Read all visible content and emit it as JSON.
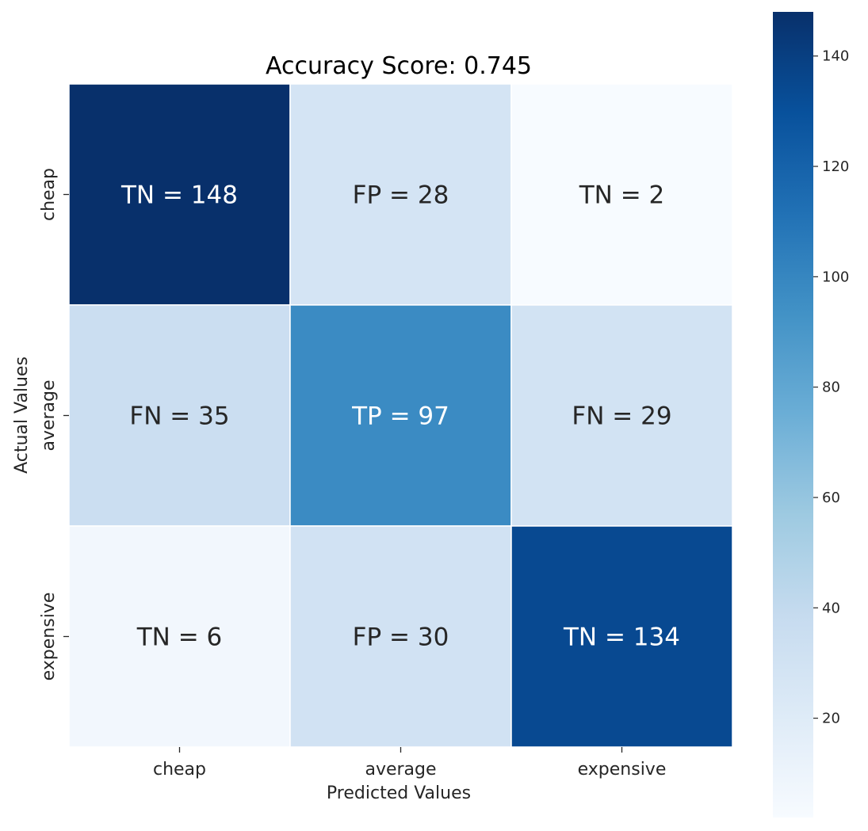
{
  "chart_data": {
    "type": "heatmap",
    "title": "Accuracy Score: 0.745",
    "xlabel": "Predicted Values",
    "ylabel": "Actual Values",
    "x_categories": [
      "cheap",
      "average",
      "expensive"
    ],
    "y_categories": [
      "cheap",
      "average",
      "expensive"
    ],
    "values": [
      [
        148,
        28,
        2
      ],
      [
        35,
        97,
        29
      ],
      [
        6,
        30,
        134
      ]
    ],
    "annotations": [
      [
        "TN = 148",
        "FP = 28",
        "TN = 2"
      ],
      [
        "FN = 35",
        "TP = 97",
        "FN = 29"
      ],
      [
        "TN = 6",
        "FP = 30",
        "TN = 134"
      ]
    ],
    "colormap": "Blues",
    "vmin": 2,
    "vmax": 148,
    "colorbar_ticks": [
      20,
      40,
      60,
      80,
      100,
      120,
      140
    ],
    "grid": false,
    "colors": {
      "low": "#f7fbff",
      "high": "#08306b",
      "light_text": "#ffffff",
      "dark_text": "#262626",
      "cell_border": "#ffffff"
    }
  }
}
